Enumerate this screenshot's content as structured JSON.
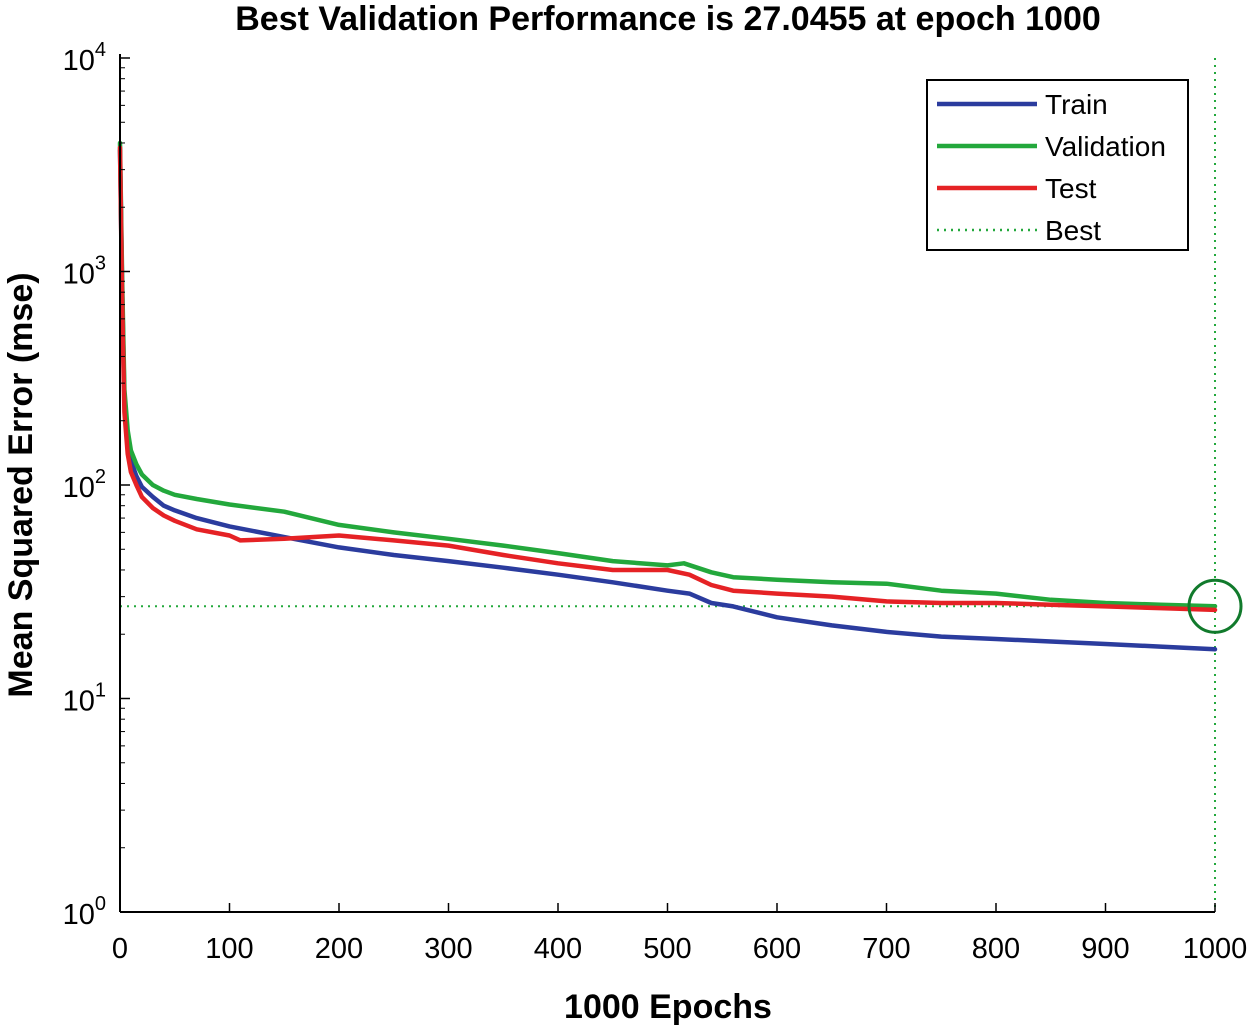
{
  "chart_data": {
    "type": "line",
    "title": "Best Validation Performance is 27.0455 at epoch 1000",
    "xlabel": "1000 Epochs",
    "ylabel": "Mean Squared Error  (mse)",
    "xlim": [
      0,
      1000
    ],
    "ylim": [
      1,
      10000
    ],
    "yscale": "log",
    "x_ticks": [
      0,
      100,
      200,
      300,
      400,
      500,
      600,
      700,
      800,
      900,
      1000
    ],
    "y_ticks": [
      {
        "base": "10",
        "exp": "0",
        "value": 1
      },
      {
        "base": "10",
        "exp": "1",
        "value": 10
      },
      {
        "base": "10",
        "exp": "2",
        "value": 100
      },
      {
        "base": "10",
        "exp": "3",
        "value": 1000
      },
      {
        "base": "10",
        "exp": "4",
        "value": 10000
      }
    ],
    "grid": false,
    "legend_position": "top-right",
    "series": [
      {
        "name": "Train",
        "color": "#2b3c9e",
        "x": [
          0,
          2,
          4,
          7,
          10,
          15,
          20,
          30,
          40,
          50,
          70,
          100,
          150,
          200,
          250,
          300,
          350,
          400,
          450,
          500,
          520,
          540,
          560,
          600,
          650,
          700,
          750,
          800,
          850,
          900,
          950,
          1000
        ],
        "y": [
          3700,
          800,
          250,
          160,
          130,
          110,
          98,
          88,
          80,
          76,
          70,
          64,
          57,
          51,
          47,
          44,
          41,
          38,
          35,
          32,
          31,
          28,
          27,
          24,
          22,
          20.5,
          19.5,
          19,
          18.5,
          18,
          17.5,
          17
        ]
      },
      {
        "name": "Validation",
        "color": "#23a83c",
        "x": [
          0,
          2,
          4,
          7,
          10,
          15,
          20,
          30,
          40,
          50,
          70,
          100,
          150,
          200,
          250,
          300,
          350,
          400,
          450,
          500,
          515,
          540,
          560,
          600,
          650,
          700,
          750,
          800,
          850,
          900,
          950,
          1000
        ],
        "y": [
          4000,
          900,
          280,
          180,
          145,
          125,
          112,
          100,
          94,
          90,
          86,
          81,
          75,
          65,
          60,
          56,
          52,
          48,
          44,
          42,
          43,
          39,
          37,
          36,
          35,
          34.5,
          32,
          31,
          29,
          28,
          27.5,
          27.0455
        ]
      },
      {
        "name": "Test",
        "color": "#e52225",
        "x": [
          0,
          2,
          4,
          7,
          10,
          15,
          20,
          30,
          40,
          50,
          70,
          100,
          110,
          150,
          200,
          250,
          300,
          350,
          400,
          450,
          500,
          520,
          540,
          560,
          600,
          650,
          700,
          750,
          800,
          850,
          900,
          950,
          1000
        ],
        "y": [
          3800,
          700,
          220,
          140,
          115,
          100,
          88,
          78,
          72,
          68,
          62,
          58,
          55,
          56,
          58,
          55,
          52,
          47,
          43,
          40,
          40,
          38,
          34,
          32,
          31,
          30,
          28.5,
          28,
          28,
          27.5,
          27,
          26.5,
          26
        ]
      }
    ],
    "best": {
      "label": "Best",
      "epoch": 1000,
      "value": 27.0455,
      "color": "#23a83c",
      "line_style": "dotted"
    }
  }
}
